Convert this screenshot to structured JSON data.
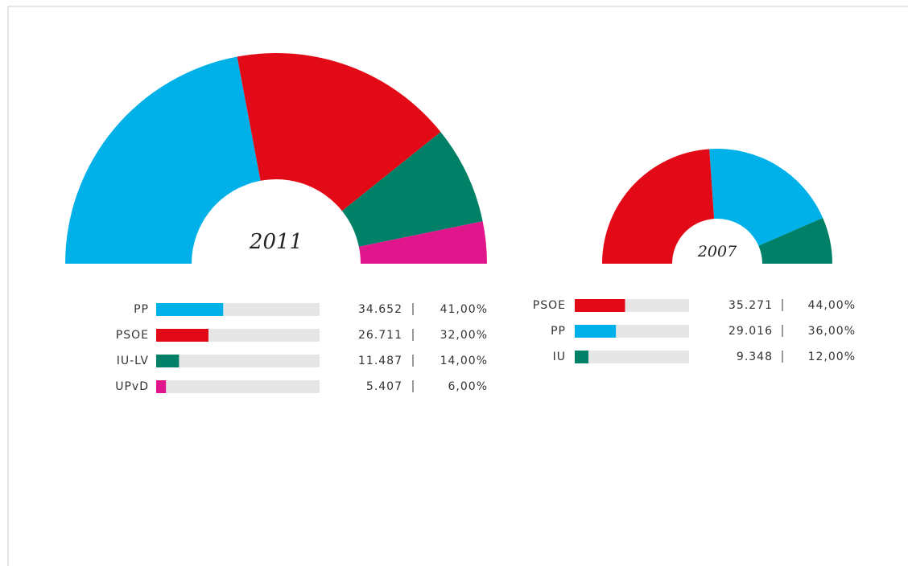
{
  "chart_data": [
    {
      "type": "semidonut",
      "title": "2011",
      "categories": [
        "PP",
        "PSOE",
        "IU-LV",
        "UPvD"
      ],
      "values": [
        41,
        32,
        14,
        6
      ],
      "value_labels": [
        "41,00%",
        "32,00%",
        "14,00%",
        "6,00%"
      ],
      "votes": [
        34652,
        26711,
        11487,
        5407
      ],
      "vote_labels": [
        "34.652",
        "26.711",
        "11.487",
        "5.407"
      ],
      "colors": [
        "#00b0e8",
        "#e30a17",
        "#008066",
        "#e0178c"
      ],
      "xlim": [
        0,
        100
      ]
    },
    {
      "type": "semidonut",
      "title": "2007",
      "categories": [
        "PSOE",
        "PP",
        "IU"
      ],
      "values": [
        44,
        36,
        12
      ],
      "value_labels": [
        "44,00%",
        "36,00%",
        "12,00%"
      ],
      "votes": [
        35271,
        29016,
        9348
      ],
      "vote_labels": [
        "35.271",
        "29.016",
        "9.348"
      ],
      "colors": [
        "#e30a17",
        "#00b0e8",
        "#008066"
      ],
      "xlim": [
        0,
        100
      ]
    }
  ]
}
